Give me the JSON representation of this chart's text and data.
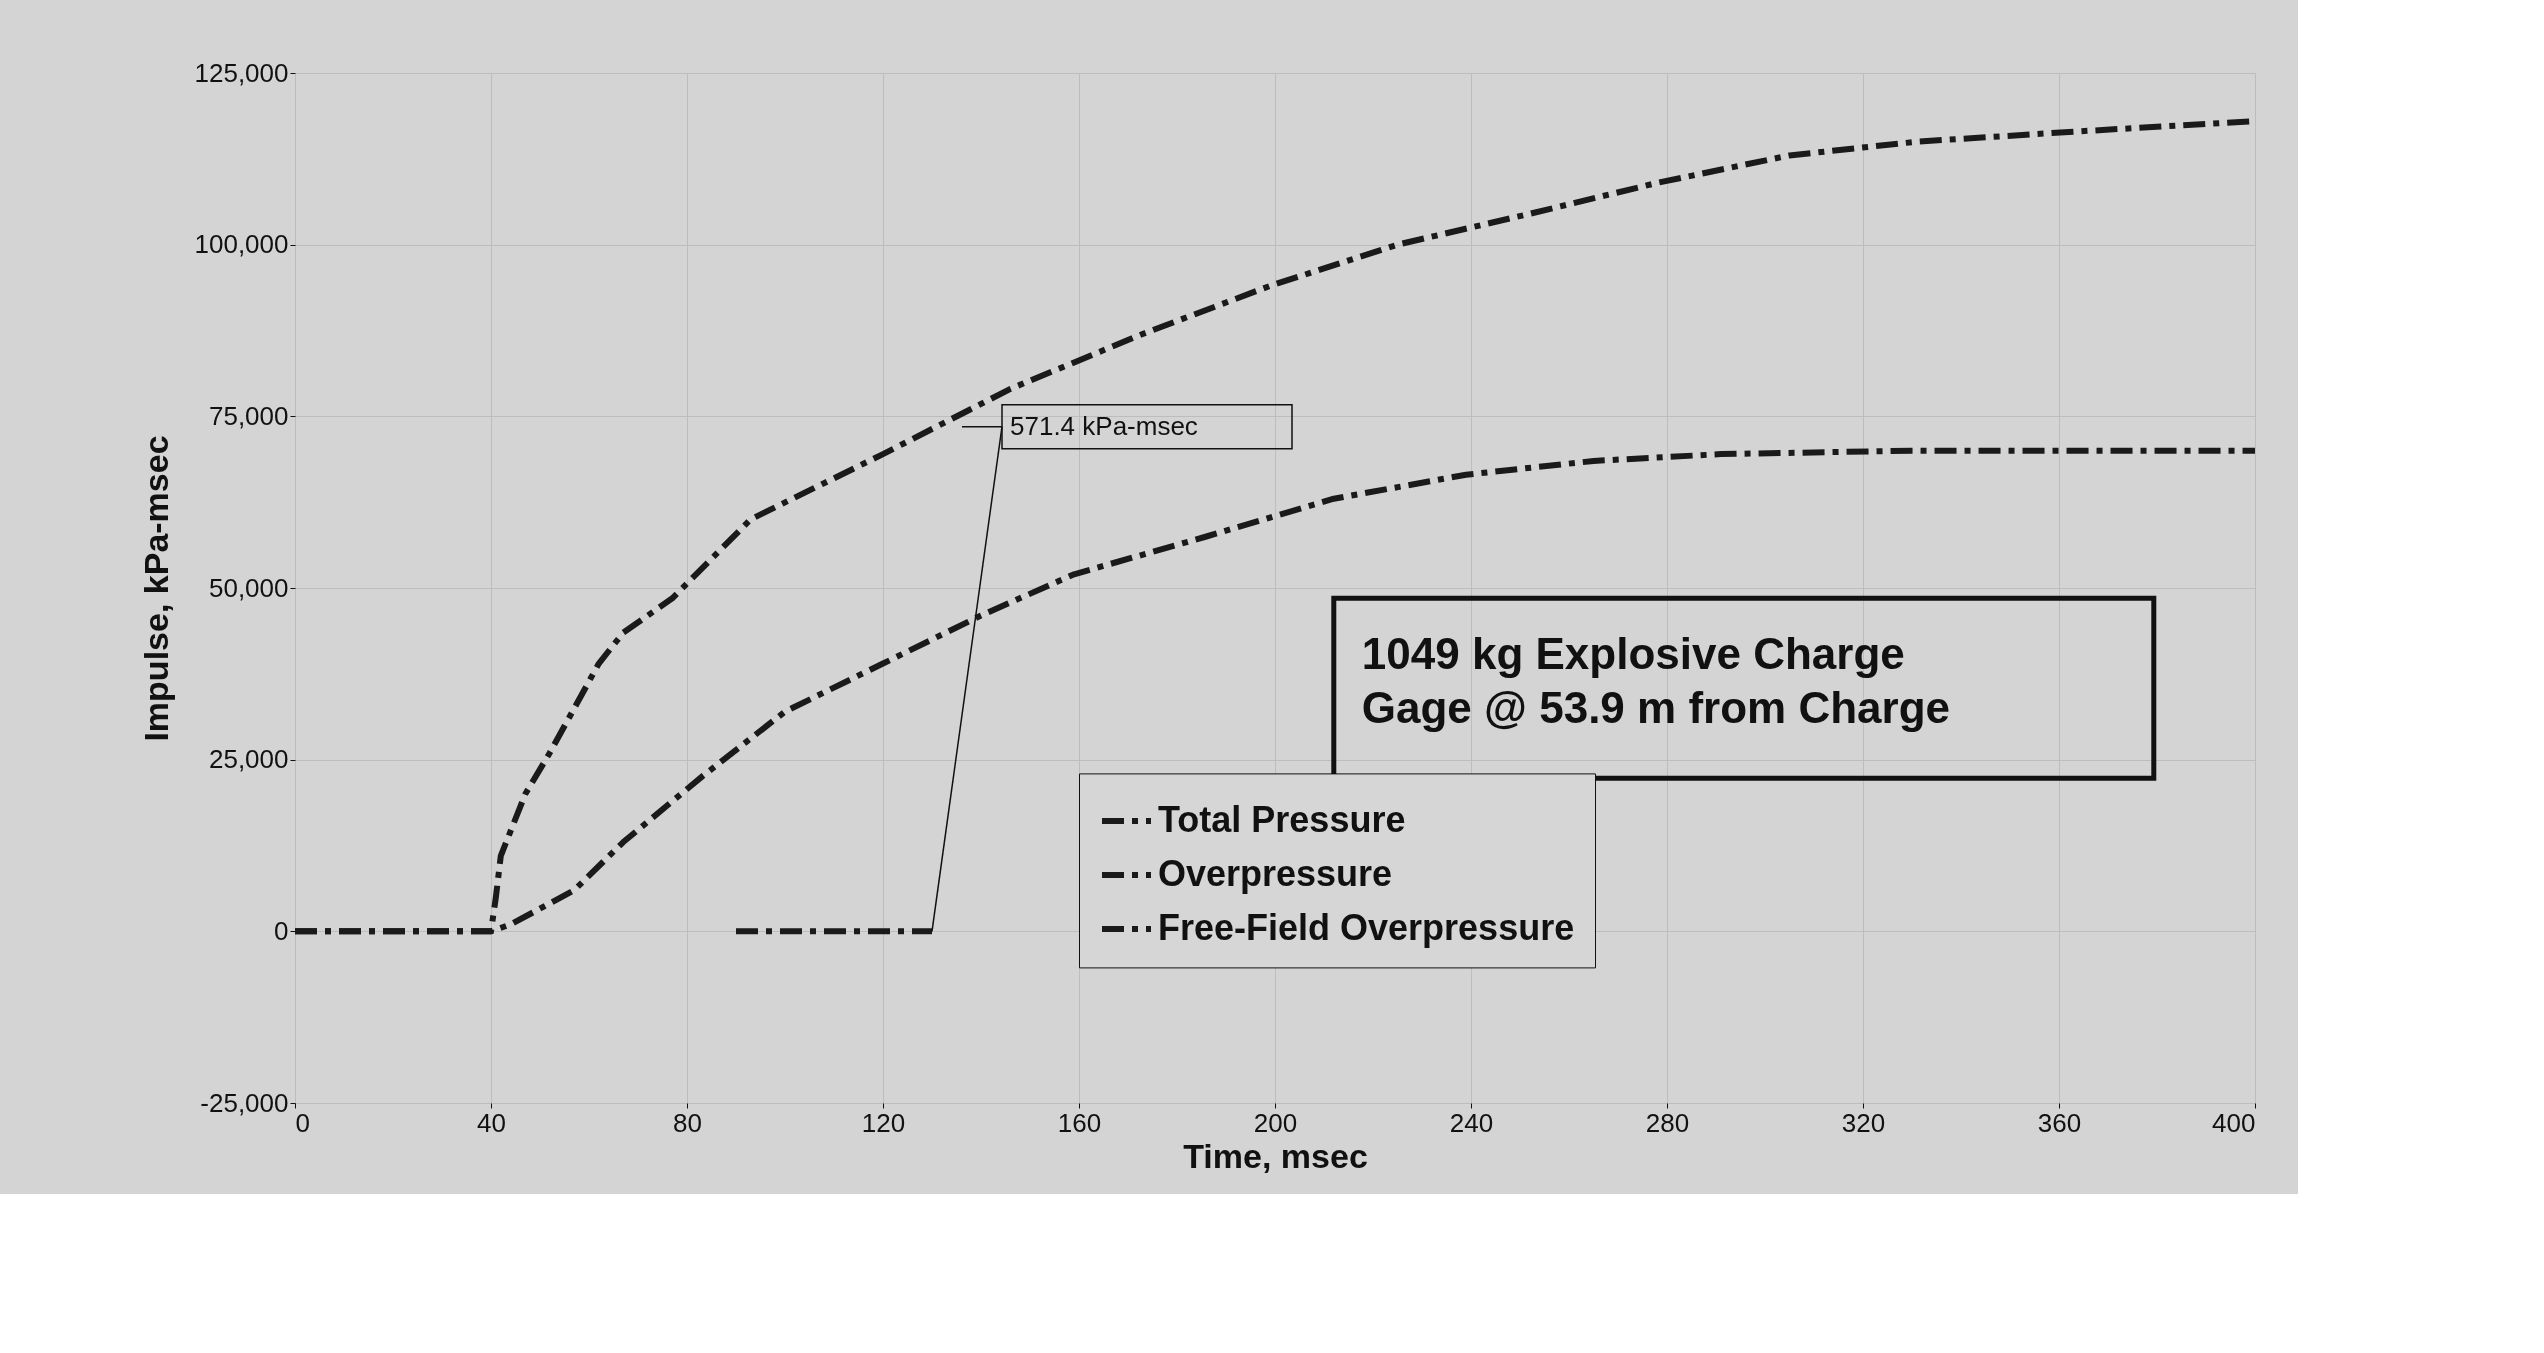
{
  "chart_data": {
    "type": "line",
    "xlabel": "Time, msec",
    "ylabel": "Impulse,  kPa-msec",
    "xlim": [
      0,
      400
    ],
    "xticks": [
      0,
      40,
      80,
      120,
      160,
      200,
      240,
      280,
      320,
      360,
      400
    ],
    "ylim": [
      -25000,
      125000
    ],
    "yticks": [
      {
        "value": -25000,
        "label": "-25,000"
      },
      {
        "value": 0,
        "label": "0"
      },
      {
        "value": 25000,
        "label": "25,000"
      },
      {
        "value": 50000,
        "label": "50,000"
      },
      {
        "value": 75000,
        "label": "75,000"
      },
      {
        "value": 100000,
        "label": "100,000"
      },
      {
        "value": 125000,
        "label": "125,000"
      }
    ],
    "grid": true,
    "legend": "bottom right",
    "line_style": "dashed",
    "marker": "none",
    "series": [
      {
        "name": "Total Pressure",
        "color": "#1a1a1a",
        "x": [
          0,
          20,
          40,
          41,
          42,
          47,
          52,
          62,
          67,
          77,
          93,
          120,
          146,
          173,
          199,
          225,
          252,
          278,
          305,
          331,
          364,
          400
        ],
        "values": [
          0,
          0,
          0,
          5000,
          11000,
          20000,
          26000,
          39000,
          43500,
          48500,
          60000,
          69500,
          79000,
          87000,
          94000,
          100000,
          104500,
          109000,
          113000,
          115000,
          116500,
          118000
        ]
      },
      {
        "name": "Overpressure",
        "color": "#1a1a1a",
        "x": [
          0,
          20,
          40,
          44,
          57,
          67,
          83,
          100,
          120,
          140,
          159,
          186,
          212,
          239,
          265,
          291,
          330,
          400
        ],
        "values": [
          0,
          0,
          0,
          1000,
          6000,
          13000,
          22500,
          32000,
          39000,
          46000,
          52000,
          57500,
          63000,
          66500,
          68500,
          69500,
          70000,
          70000
        ]
      },
      {
        "name": "Free-Field Overpressure",
        "color": "#1a1a1a",
        "x": [
          90,
          110,
          130
        ],
        "values": [
          0,
          0,
          0
        ]
      }
    ],
    "annotations": [
      {
        "text": "571.4 kPa-msec",
        "x": 130,
        "y": 0
      },
      "1049 kg Explosive Charge\nGage @ 53.9 m from Charge"
    ]
  }
}
